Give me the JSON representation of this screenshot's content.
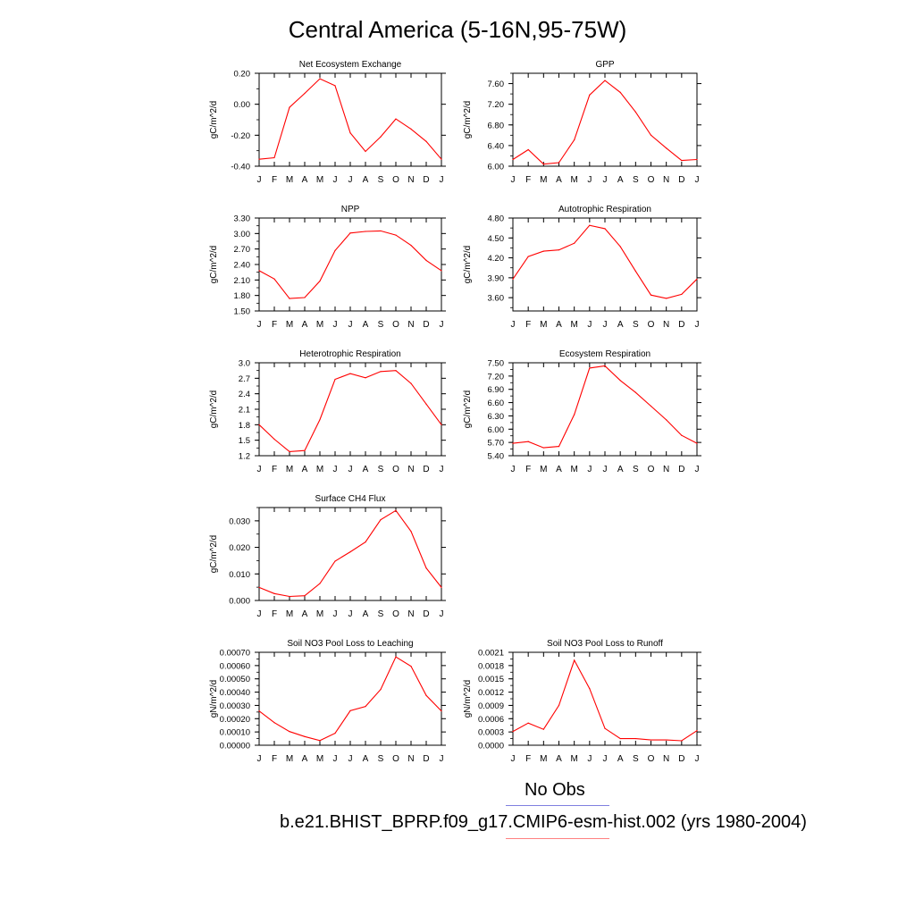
{
  "figure": {
    "title": "Central America (5-16N,95-75W)"
  },
  "legend": [
    {
      "label": "No Obs",
      "color": "#8080e0"
    },
    {
      "label": "b.e21.BHIST_BPRP.f09_g17.CMIP6-esm-hist.002 (yrs 1980-2004)",
      "color": "#ff8080"
    }
  ],
  "line_color": "#ff0000",
  "months": [
    "J",
    "F",
    "M",
    "A",
    "M",
    "J",
    "J",
    "A",
    "S",
    "O",
    "N",
    "D",
    "J"
  ],
  "chart_data": [
    {
      "type": "line",
      "title": "Net Ecosystem Exchange",
      "ylabel": "gC/m^2/d",
      "ylim": [
        -0.4,
        0.2
      ],
      "ytick_labels": [
        "-0.40",
        "-0.20",
        "0.00",
        "0.20"
      ],
      "values": [
        -0.355,
        -0.345,
        -0.02,
        0.07,
        0.165,
        0.12,
        -0.185,
        -0.305,
        -0.21,
        -0.095,
        -0.16,
        -0.24,
        -0.355
      ]
    },
    {
      "type": "line",
      "title": "GPP",
      "ylabel": "gC/m^2/d",
      "ylim": [
        6.0,
        7.8
      ],
      "ytick_labels": [
        "6.00",
        "6.40",
        "6.80",
        "7.20",
        "7.60"
      ],
      "values": [
        6.13,
        6.32,
        6.04,
        6.07,
        6.51,
        7.38,
        7.66,
        7.43,
        7.05,
        6.6,
        6.35,
        6.11,
        6.13
      ]
    },
    {
      "type": "line",
      "title": "NPP",
      "ylabel": "gC/m^2/d",
      "ylim": [
        1.5,
        3.3
      ],
      "ytick_labels": [
        "1.50",
        "1.80",
        "2.10",
        "2.40",
        "2.70",
        "3.00",
        "3.30"
      ],
      "values": [
        2.28,
        2.12,
        1.74,
        1.76,
        2.08,
        2.67,
        3.01,
        3.04,
        3.05,
        2.97,
        2.77,
        2.48,
        2.28
      ]
    },
    {
      "type": "line",
      "title": "Autotrophic Respiration",
      "ylabel": "gC/m^2/d",
      "ylim": [
        3.4,
        4.8
      ],
      "ytick_labels": [
        "3.60",
        "3.90",
        "4.20",
        "4.50",
        "4.80"
      ],
      "values": [
        3.88,
        4.22,
        4.3,
        4.32,
        4.42,
        4.69,
        4.64,
        4.37,
        4.0,
        3.64,
        3.59,
        3.65,
        3.88
      ]
    },
    {
      "type": "line",
      "title": "Heterotrophic Respiration",
      "ylabel": "gC/m^2/d",
      "ylim": [
        1.2,
        3.0
      ],
      "ytick_labels": [
        "1.2",
        "1.5",
        "1.8",
        "2.1",
        "2.4",
        "2.7",
        "3.0"
      ],
      "values": [
        1.8,
        1.52,
        1.28,
        1.3,
        1.9,
        2.68,
        2.79,
        2.71,
        2.83,
        2.85,
        2.6,
        2.2,
        1.8
      ]
    },
    {
      "type": "line",
      "title": "Ecosystem Respiration",
      "ylabel": "gC/m^2/d",
      "ylim": [
        5.4,
        7.5
      ],
      "ytick_labels": [
        "5.40",
        "5.70",
        "6.00",
        "6.30",
        "6.60",
        "6.90",
        "7.20",
        "7.50"
      ],
      "values": [
        5.68,
        5.72,
        5.58,
        5.61,
        6.33,
        7.38,
        7.43,
        7.1,
        6.83,
        6.52,
        6.21,
        5.86,
        5.68
      ]
    },
    {
      "type": "line",
      "title": "Surface CH4 Flux",
      "ylabel": "gC/m^2/d",
      "ylim": [
        0.0,
        0.035
      ],
      "ytick_labels": [
        "0.000",
        "0.010",
        "0.020",
        "0.030"
      ],
      "values": [
        0.0049,
        0.0026,
        0.0015,
        0.0018,
        0.0064,
        0.0148,
        0.0183,
        0.022,
        0.0304,
        0.0339,
        0.026,
        0.0122,
        0.0049
      ]
    },
    {
      "type": "line",
      "title": "Soil NO3 Pool Loss to Leaching",
      "ylabel": "gN/m^2/d",
      "ylim": [
        0.0,
        0.0007
      ],
      "ytick_labels": [
        "0.00000",
        "0.00010",
        "0.00020",
        "0.00030",
        "0.00040",
        "0.00050",
        "0.00060",
        "0.00070"
      ],
      "values": [
        0.000258,
        0.00017,
        0.000103,
        6.5e-05,
        3.5e-05,
        9e-05,
        0.00026,
        0.000292,
        0.00042,
        0.000665,
        0.000595,
        0.000375,
        0.000258
      ]
    },
    {
      "type": "line",
      "title": "Soil NO3 Pool Loss to Runoff",
      "ylabel": "gN/m^2/d",
      "ylim": [
        0.0,
        0.0021
      ],
      "ytick_labels": [
        "0.0000",
        "0.0003",
        "0.0006",
        "0.0009",
        "0.0012",
        "0.0015",
        "0.0018",
        "0.0021"
      ],
      "values": [
        0.00031,
        0.0005,
        0.00036,
        0.0009,
        0.00192,
        0.00128,
        0.00038,
        0.00015,
        0.00015,
        0.00012,
        0.00012,
        0.0001,
        0.00033
      ]
    }
  ]
}
